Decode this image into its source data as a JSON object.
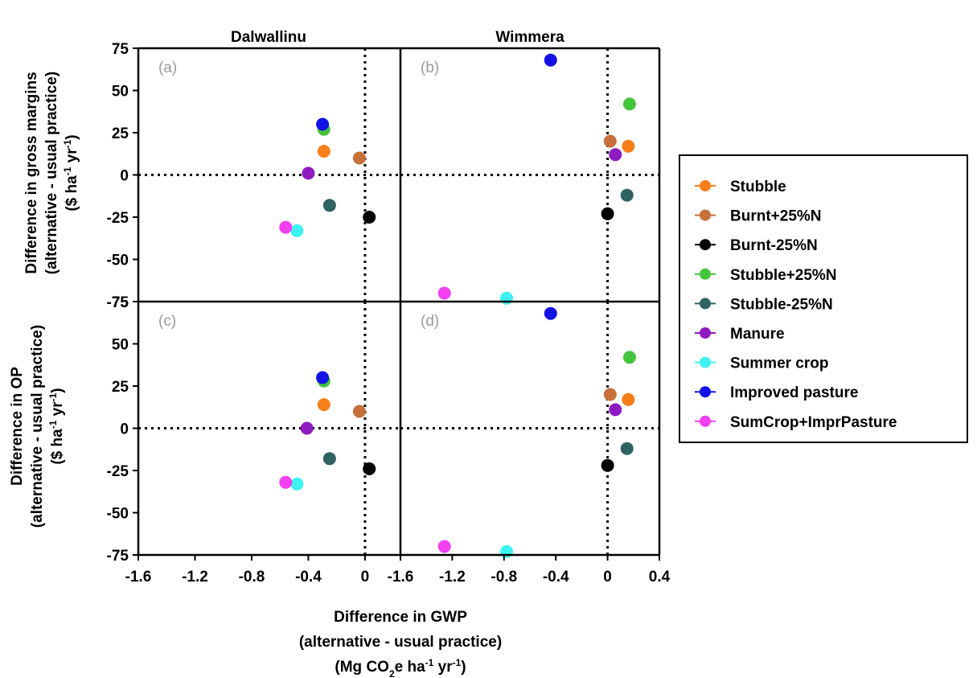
{
  "chart_data": {
    "type": "scatter",
    "series_names": [
      "Stubble",
      "Burnt+25%N",
      "Burnt-25%N",
      "Stubble+25%N",
      "Stubble-25%N",
      "Manure",
      "Summer crop",
      "Improved pasture",
      "SumCrop+ImprPasture"
    ],
    "colors": {
      "Stubble": "#f77f1a",
      "Burnt+25%N": "#c8703a",
      "Burnt-25%N": "#000000",
      "Stubble+25%N": "#45c43e",
      "Stubble-25%N": "#2e6362",
      "Manure": "#8e1bc2",
      "Summer crop": "#3ef2f2",
      "Improved pasture": "#1212e6",
      "SumCrop+ImprPasture": "#f23ff0"
    },
    "columns": [
      "Dalwallinu",
      "Wimmera"
    ],
    "x_axis": {
      "xlim": [
        -1.6,
        0.4
      ],
      "ticks_left": [
        "-1.6",
        "-1.2",
        "-0.8",
        "-0.4",
        "0"
      ],
      "ticks_right": [
        "-1.6",
        "-1.2",
        "-0.8",
        "-0.4",
        "0",
        "0.4"
      ],
      "label_line1": "Difference in GWP",
      "label_line2": "(alternative - usual practice)",
      "label_line3_main": "(Mg CO",
      "label_line3_sub": "2",
      "label_line3_end": "e ha",
      "label_line3_sup1": "-1",
      "label_line3_mid": " yr",
      "label_line3_sup2": "-1",
      "label_line3_close": ")"
    },
    "y_axis": {
      "ylim": [
        -75,
        75
      ],
      "ticks": [
        "75",
        "50",
        "25",
        "0",
        "-25",
        "-50",
        "-75"
      ]
    },
    "row_labels": [
      {
        "line1": "Difference in gross margins",
        "line2": "(alternative - usual practice)",
        "line3_main": "($ ha",
        "line3_sup1": "-1",
        "line3_mid": " yr",
        "line3_sup2": "-1",
        "line3_close": ")"
      },
      {
        "line1": "Difference in OP",
        "line2": "(alternative - usual practice)",
        "line3_main": "($ ha",
        "line3_sup1": "-1",
        "line3_mid": " yr",
        "line3_sup2": "-1",
        "line3_close": ")"
      }
    ],
    "panels": [
      {
        "label": "(a)",
        "row": 0,
        "col": 0,
        "points": [
          {
            "series": "Stubble",
            "x": -0.29,
            "y": 14
          },
          {
            "series": "Burnt+25%N",
            "x": -0.04,
            "y": 10
          },
          {
            "series": "Burnt-25%N",
            "x": 0.03,
            "y": -25
          },
          {
            "series": "Stubble+25%N",
            "x": -0.29,
            "y": 27
          },
          {
            "series": "Stubble-25%N",
            "x": -0.25,
            "y": -18
          },
          {
            "series": "Manure",
            "x": -0.4,
            "y": 1
          },
          {
            "series": "Summer crop",
            "x": -0.48,
            "y": -33
          },
          {
            "series": "Improved pasture",
            "x": -0.3,
            "y": 30
          },
          {
            "series": "SumCrop+ImprPasture",
            "x": -0.56,
            "y": -31
          }
        ]
      },
      {
        "label": "(b)",
        "row": 0,
        "col": 1,
        "points": [
          {
            "series": "Stubble",
            "x": 0.16,
            "y": 17
          },
          {
            "series": "Burnt+25%N",
            "x": 0.02,
            "y": 20
          },
          {
            "series": "Burnt-25%N",
            "x": 0,
            "y": -23
          },
          {
            "series": "Stubble+25%N",
            "x": 0.17,
            "y": 42
          },
          {
            "series": "Stubble-25%N",
            "x": 0.15,
            "y": -12
          },
          {
            "series": "Manure",
            "x": 0.06,
            "y": 12
          },
          {
            "series": "Summer crop",
            "x": -0.78,
            "y": -73
          },
          {
            "series": "Improved pasture",
            "x": -0.44,
            "y": 68
          },
          {
            "series": "SumCrop+ImprPasture",
            "x": -1.26,
            "y": -70
          }
        ]
      },
      {
        "label": "(c)",
        "row": 1,
        "col": 0,
        "points": [
          {
            "series": "Stubble",
            "x": -0.29,
            "y": 14
          },
          {
            "series": "Burnt+25%N",
            "x": -0.04,
            "y": 10
          },
          {
            "series": "Burnt-25%N",
            "x": 0.03,
            "y": -24
          },
          {
            "series": "Stubble+25%N",
            "x": -0.29,
            "y": 28
          },
          {
            "series": "Stubble-25%N",
            "x": -0.25,
            "y": -18
          },
          {
            "series": "Manure",
            "x": -0.41,
            "y": 0
          },
          {
            "series": "Summer crop",
            "x": -0.48,
            "y": -33
          },
          {
            "series": "Improved pasture",
            "x": -0.3,
            "y": 30
          },
          {
            "series": "SumCrop+ImprPasture",
            "x": -0.56,
            "y": -32
          }
        ]
      },
      {
        "label": "(d)",
        "row": 1,
        "col": 1,
        "points": [
          {
            "series": "Stubble",
            "x": 0.16,
            "y": 17
          },
          {
            "series": "Burnt+25%N",
            "x": 0.02,
            "y": 20
          },
          {
            "series": "Burnt-25%N",
            "x": 0,
            "y": -22
          },
          {
            "series": "Stubble+25%N",
            "x": 0.17,
            "y": 42
          },
          {
            "series": "Stubble-25%N",
            "x": 0.15,
            "y": -12
          },
          {
            "series": "Manure",
            "x": 0.06,
            "y": 11
          },
          {
            "series": "Summer crop",
            "x": -0.78,
            "y": -73
          },
          {
            "series": "Improved pasture",
            "x": -0.44,
            "y": 68
          },
          {
            "series": "SumCrop+ImprPasture",
            "x": -1.26,
            "y": -70
          }
        ]
      }
    ],
    "reference_lines": {
      "x": 0,
      "y": 0,
      "style": "dotted"
    },
    "legend": {
      "placement": "right"
    },
    "grid": false
  }
}
